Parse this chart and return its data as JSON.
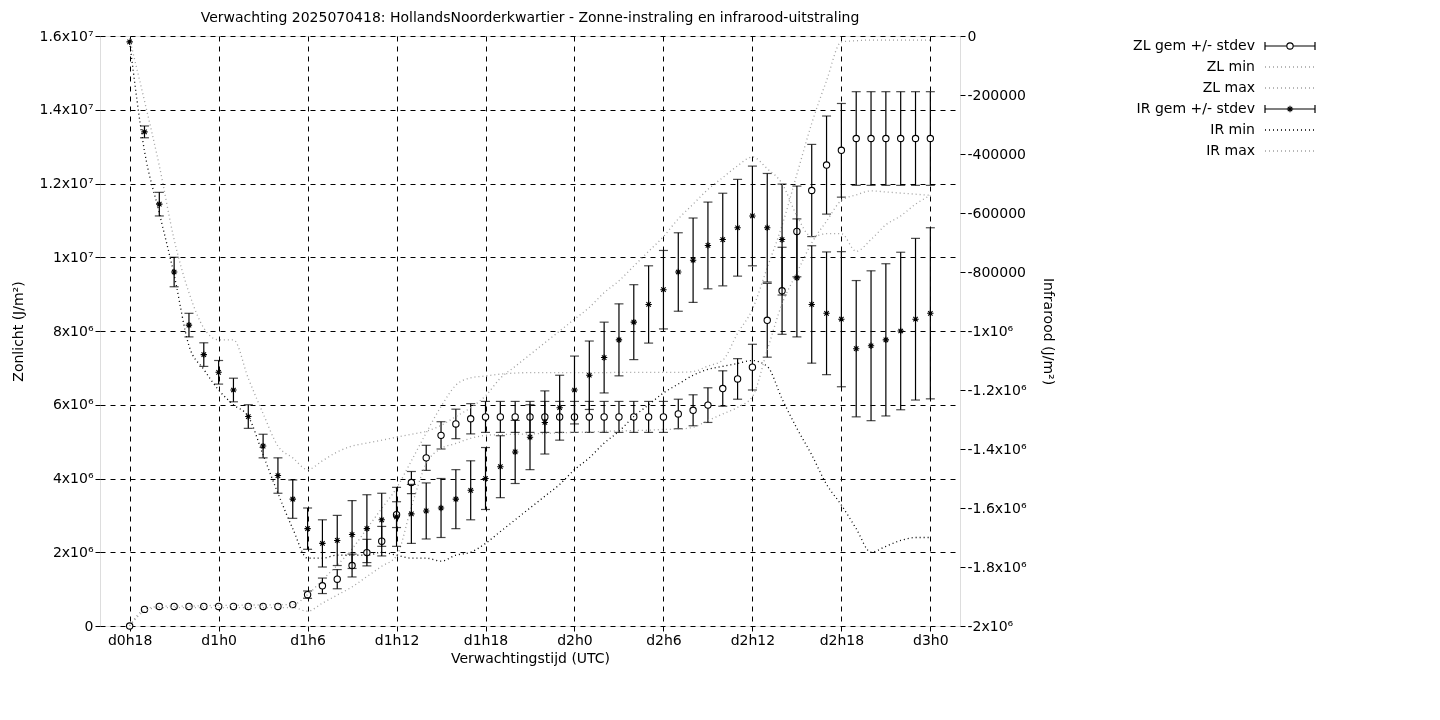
{
  "chart_data": {
    "type": "scatter",
    "title": "Verwachting 2025070418: HollandsNoorderkwartier - Zonne-instraling en infrarood-uitstraling",
    "xlabel": "Verwachtingstijd (UTC)",
    "ylabel": "Zonlicht (J/m²)",
    "y2label": "Infrarood (J/m²)",
    "categories": [
      "d0h18",
      null,
      null,
      null,
      null,
      null,
      "d1h0",
      null,
      null,
      null,
      null,
      null,
      "d1h6",
      null,
      null,
      null,
      null,
      null,
      "d1h12",
      null,
      null,
      null,
      null,
      null,
      "d1h18",
      null,
      null,
      null,
      null,
      null,
      "d2h0",
      null,
      null,
      null,
      null,
      null,
      "d2h6",
      null,
      null,
      null,
      null,
      null,
      "d2h12",
      null,
      null,
      null,
      null,
      null,
      "d2h18",
      null,
      null,
      null,
      null,
      null,
      "d3h0"
    ],
    "ylim": [
      0,
      16000000
    ],
    "yticks": [
      0,
      {
        "value": 2000000,
        "label": "2x10⁶"
      },
      {
        "value": 4000000,
        "label": "4x10⁶"
      },
      {
        "value": 6000000,
        "label": "6x10⁶"
      },
      {
        "value": 8000000,
        "label": "8x10⁶"
      },
      {
        "value": 10000000,
        "label": "1x10⁷"
      },
      {
        "value": 12000000,
        "label": "1.2x10⁷"
      },
      {
        "value": 14000000,
        "label": "1.4x10⁷"
      },
      {
        "value": 16000000,
        "label": "1.6x10⁷"
      }
    ],
    "y2lim": [
      -2000000,
      0
    ],
    "y2ticks": [
      0,
      -200000,
      -400000,
      -600000,
      -800000,
      {
        "value": -1000000,
        "label": "-1x10⁶"
      },
      {
        "value": -1200000,
        "label": "-1.2x10⁶"
      },
      {
        "value": -1400000,
        "label": "-1.4x10⁶"
      },
      {
        "value": -1600000,
        "label": "-1.6x10⁶"
      },
      {
        "value": -1800000,
        "label": "-1.8x10⁶"
      },
      {
        "value": -2000000,
        "label": "-2x10⁶"
      }
    ],
    "grid": true,
    "legend": "top right",
    "series": [
      {
        "name": "ZL gem +/- stdev",
        "marker": "circle",
        "color": "#000000",
        "values": [
          0,
          450000,
          530000,
          530000,
          530000,
          530000,
          530000,
          530000,
          530000,
          530000,
          530000,
          580000,
          850000,
          1090000,
          1270000,
          1640000,
          1990000,
          2300000,
          3020000,
          3890000,
          4560000,
          5170000,
          5480000,
          5620000,
          5670000,
          5670000,
          5670000,
          5670000,
          5670000,
          5670000,
          5670000,
          5670000,
          5670000,
          5670000,
          5670000,
          5670000,
          5670000,
          5750000,
          5850000,
          5990000,
          6440000,
          6700000,
          7020000,
          8290000,
          9090000,
          10700000,
          11810000,
          12500000,
          12900000,
          13220000,
          13220000,
          13220000,
          13220000,
          13220000,
          13220000
        ],
        "errors": [
          null,
          null,
          null,
          null,
          null,
          null,
          null,
          null,
          null,
          null,
          null,
          null,
          100000,
          210000,
          260000,
          310000,
          360000,
          400000,
          350000,
          300000,
          340000,
          370000,
          400000,
          410000,
          420000,
          420000,
          420000,
          420000,
          420000,
          420000,
          420000,
          420000,
          420000,
          420000,
          420000,
          420000,
          420000,
          400000,
          420000,
          470000,
          480000,
          550000,
          620000,
          1000000,
          1180000,
          1230000,
          1250000,
          1330000,
          1270000,
          1270000,
          1270000,
          1270000,
          1270000,
          1270000,
          1270000
        ]
      },
      {
        "name": "ZL min",
        "type": "line",
        "line_style": "dotted",
        "color": "#a0a0a0",
        "values": [
          0,
          400000,
          500000,
          500000,
          500000,
          500000,
          500000,
          500000,
          500000,
          500000,
          500000,
          500000,
          400000,
          620000,
          840000,
          1060000,
          1340000,
          1620000,
          1900000,
          3230000,
          4400000,
          4810000,
          4950000,
          5090000,
          5170000,
          5190000,
          5200000,
          5210000,
          5220000,
          5240000,
          5250000,
          5260000,
          5280000,
          5290000,
          5300000,
          5310000,
          5330000,
          5340000,
          5390000,
          5570000,
          5750000,
          5930000,
          6220000,
          7480000,
          8740000,
          9580000,
          10390000,
          10980000,
          11540000,
          11690000,
          11800000,
          11770000,
          11740000,
          11710000,
          11680000
        ]
      },
      {
        "name": "ZL max",
        "type": "line",
        "line_style": "dotted",
        "color": "#a0a0a0",
        "values": [
          0,
          450000,
          530000,
          540000,
          540000,
          550000,
          560000,
          560000,
          570000,
          570000,
          580000,
          580000,
          850000,
          1250000,
          1650000,
          2090000,
          2640000,
          3190000,
          3740000,
          4480000,
          5240000,
          5950000,
          6530000,
          6730000,
          6780000,
          6830000,
          6860000,
          6870000,
          6870000,
          6870000,
          6870000,
          6870000,
          6870000,
          6880000,
          6880000,
          6880000,
          6880000,
          6880000,
          6900000,
          7050000,
          7210000,
          7940000,
          8590000,
          9720000,
          10860000,
          12250000,
          13630000,
          14790000,
          15840000,
          15870000,
          15890000,
          15890000,
          15890000,
          15890000,
          15890000
        ]
      },
      {
        "name": "IR gem +/- stdev",
        "marker": "cross",
        "axis": "y2",
        "color": "#000000",
        "values": [
          -20000,
          -325000,
          -570000,
          -800000,
          -980000,
          -1080000,
          -1140000,
          -1200000,
          -1290000,
          -1390000,
          -1490000,
          -1570000,
          -1670000,
          -1720000,
          -1710000,
          -1690000,
          -1670000,
          -1640000,
          -1630000,
          -1620000,
          -1610000,
          -1600000,
          -1570000,
          -1540000,
          -1500000,
          -1460000,
          -1410000,
          -1360000,
          -1310000,
          -1260000,
          -1200000,
          -1150000,
          -1090000,
          -1030000,
          -970000,
          -910000,
          -860000,
          -800000,
          -760000,
          -710000,
          -690000,
          -650000,
          -610000,
          -650000,
          -690000,
          -820000,
          -910000,
          -940000,
          -960000,
          -1060000,
          -1050000,
          -1030000,
          -1000000,
          -960000,
          -940000
        ],
        "errors": [
          null,
          20000,
          40000,
          50000,
          40000,
          40000,
          40000,
          40000,
          40000,
          40000,
          60000,
          65000,
          70000,
          80000,
          85000,
          115000,
          115000,
          90000,
          100000,
          100000,
          95000,
          100000,
          100000,
          100000,
          105000,
          105000,
          107000,
          110000,
          107000,
          110000,
          115000,
          116000,
          120000,
          122000,
          127000,
          131000,
          133000,
          133000,
          143000,
          147000,
          157000,
          164000,
          169000,
          184000,
          188000,
          200000,
          199000,
          208000,
          229000,
          231000,
          254000,
          258000,
          267000,
          274000,
          290000
        ]
      },
      {
        "name": "IR min",
        "type": "line",
        "line_style": "dotted",
        "axis": "y2",
        "color": "#000000",
        "values": [
          -20000,
          -390000,
          -600000,
          -810000,
          -1050000,
          -1130000,
          -1200000,
          -1250000,
          -1290000,
          -1420000,
          -1550000,
          -1670000,
          -1770000,
          -1770000,
          -1760000,
          -1760000,
          -1760000,
          -1750000,
          -1760000,
          -1770000,
          -1770000,
          -1780000,
          -1760000,
          -1750000,
          -1720000,
          -1680000,
          -1640000,
          -1600000,
          -1560000,
          -1520000,
          -1470000,
          -1430000,
          -1380000,
          -1340000,
          -1290000,
          -1250000,
          -1210000,
          -1180000,
          -1150000,
          -1130000,
          -1120000,
          -1110000,
          -1100000,
          -1120000,
          -1230000,
          -1330000,
          -1420000,
          -1520000,
          -1590000,
          -1670000,
          -1750000,
          -1730000,
          -1710000,
          -1700000,
          -1700000
        ]
      },
      {
        "name": "IR max",
        "type": "line",
        "line_style": "dotted",
        "axis": "y2",
        "color": "#a0a0a0",
        "values": [
          -10000,
          -220000,
          -440000,
          -690000,
          -870000,
          -990000,
          -1030000,
          -1030000,
          -1160000,
          -1280000,
          -1390000,
          -1430000,
          -1470000,
          -1440000,
          -1410000,
          -1390000,
          -1380000,
          -1370000,
          -1360000,
          -1350000,
          -1340000,
          -1320000,
          -1290000,
          -1260000,
          -1220000,
          -1160000,
          -1120000,
          -1080000,
          -1040000,
          -1000000,
          -960000,
          -920000,
          -870000,
          -830000,
          -780000,
          -730000,
          -680000,
          -620000,
          -570000,
          -520000,
          -480000,
          -440000,
          -410000,
          -450000,
          -500000,
          -610000,
          -680000,
          -670000,
          -670000,
          -730000,
          -690000,
          -640000,
          -610000,
          -570000,
          -540000
        ]
      }
    ]
  }
}
